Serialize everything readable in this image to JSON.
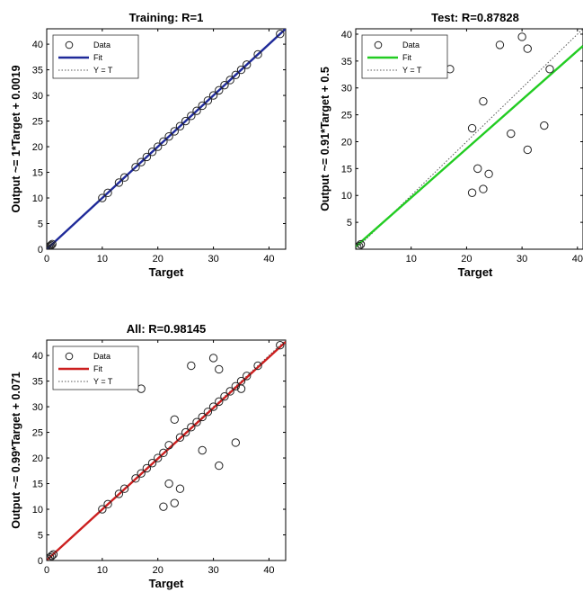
{
  "chart_data": [
    {
      "id": "training",
      "type": "scatter",
      "title": "Training: R=1",
      "xlabel": "Target",
      "ylabel": "Output ~= 1*Target + 0.0019",
      "xlim": [
        0,
        43
      ],
      "ylim": [
        0,
        43
      ],
      "xticks": [
        0,
        10,
        20,
        30,
        40
      ],
      "yticks": [
        0,
        5,
        10,
        15,
        20,
        25,
        30,
        35,
        40
      ],
      "grid": false,
      "legend_position": "top-left",
      "fit_color": "#1f2a99",
      "fit": {
        "slope": 1,
        "intercept": 0.0019
      },
      "legend": [
        "Data",
        "Fit",
        "Y = T"
      ],
      "series": [
        {
          "name": "Data",
          "x": [
            0,
            0.2,
            0.4,
            0.6,
            0.8,
            1.0,
            10,
            11,
            13,
            14,
            16,
            17,
            18,
            19,
            20,
            21,
            22,
            23,
            24,
            25,
            26,
            27,
            28,
            29,
            30,
            31,
            32,
            33,
            34,
            35,
            36,
            38,
            42
          ],
          "y": [
            0,
            0.2,
            0.4,
            0.6,
            0.8,
            1.0,
            10,
            11,
            13,
            14,
            16,
            17,
            18,
            19,
            20,
            21,
            22,
            23,
            24,
            25,
            26,
            27,
            28,
            29,
            30,
            31,
            32,
            33,
            34,
            35,
            36,
            38,
            42
          ]
        }
      ]
    },
    {
      "id": "test",
      "type": "scatter",
      "title": "Test: R=0.87828",
      "xlabel": "Target",
      "ylabel": "Output ~= 0.91*Target + 0.5",
      "xlim": [
        0,
        41
      ],
      "ylim": [
        0,
        41
      ],
      "xticks": [
        10,
        20,
        30,
        40
      ],
      "yticks": [
        5,
        10,
        15,
        20,
        25,
        30,
        35,
        40
      ],
      "grid": false,
      "legend_position": "top-left",
      "fit_color": "#22cc22",
      "fit": {
        "slope": 0.91,
        "intercept": 0.5
      },
      "legend": [
        "Data",
        "Fit",
        "Y = T"
      ],
      "series": [
        {
          "name": "Data",
          "x": [
            0.3,
            0.6,
            0.9,
            17,
            21,
            21,
            22,
            23,
            23,
            24,
            26,
            28,
            30,
            31,
            31,
            34,
            35
          ],
          "y": [
            0.3,
            0.6,
            0.9,
            33.5,
            22.5,
            10.5,
            15,
            27.5,
            11.2,
            14,
            38,
            21.5,
            39.5,
            18.5,
            37.3,
            23,
            33.5
          ]
        }
      ]
    },
    {
      "id": "all",
      "type": "scatter",
      "title": "All: R=0.98145",
      "xlabel": "Target",
      "ylabel": "Output ~= 0.99*Target + 0.071",
      "xlim": [
        0,
        43
      ],
      "ylim": [
        0,
        43
      ],
      "xticks": [
        0,
        10,
        20,
        30,
        40
      ],
      "yticks": [
        0,
        5,
        10,
        15,
        20,
        25,
        30,
        35,
        40
      ],
      "grid": false,
      "legend_position": "top-left",
      "fit_color": "#cc1f1f",
      "fit": {
        "slope": 0.99,
        "intercept": 0.071
      },
      "legend": [
        "Data",
        "Fit",
        "Y = T"
      ],
      "series": [
        {
          "name": "Data",
          "x": [
            0,
            0.3,
            0.6,
            0.9,
            1.2,
            10,
            11,
            13,
            14,
            16,
            17,
            17,
            18,
            19,
            20,
            21,
            21,
            22,
            22,
            23,
            23,
            24,
            24,
            25,
            26,
            26,
            27,
            28,
            28,
            29,
            30,
            30,
            31,
            31,
            31,
            32,
            33,
            34,
            34,
            35,
            35,
            36,
            38,
            42
          ],
          "y": [
            0,
            0.3,
            0.6,
            0.9,
            1.2,
            10,
            11,
            13,
            14,
            16,
            17,
            33.5,
            18,
            19,
            20,
            21,
            10.5,
            22.5,
            15,
            27.5,
            11.2,
            14,
            24,
            25,
            26,
            38,
            27,
            28,
            21.5,
            29,
            30,
            39.5,
            31,
            18.5,
            37.3,
            32,
            33,
            34,
            23,
            35,
            33.5,
            36,
            38,
            42
          ]
        }
      ]
    }
  ]
}
